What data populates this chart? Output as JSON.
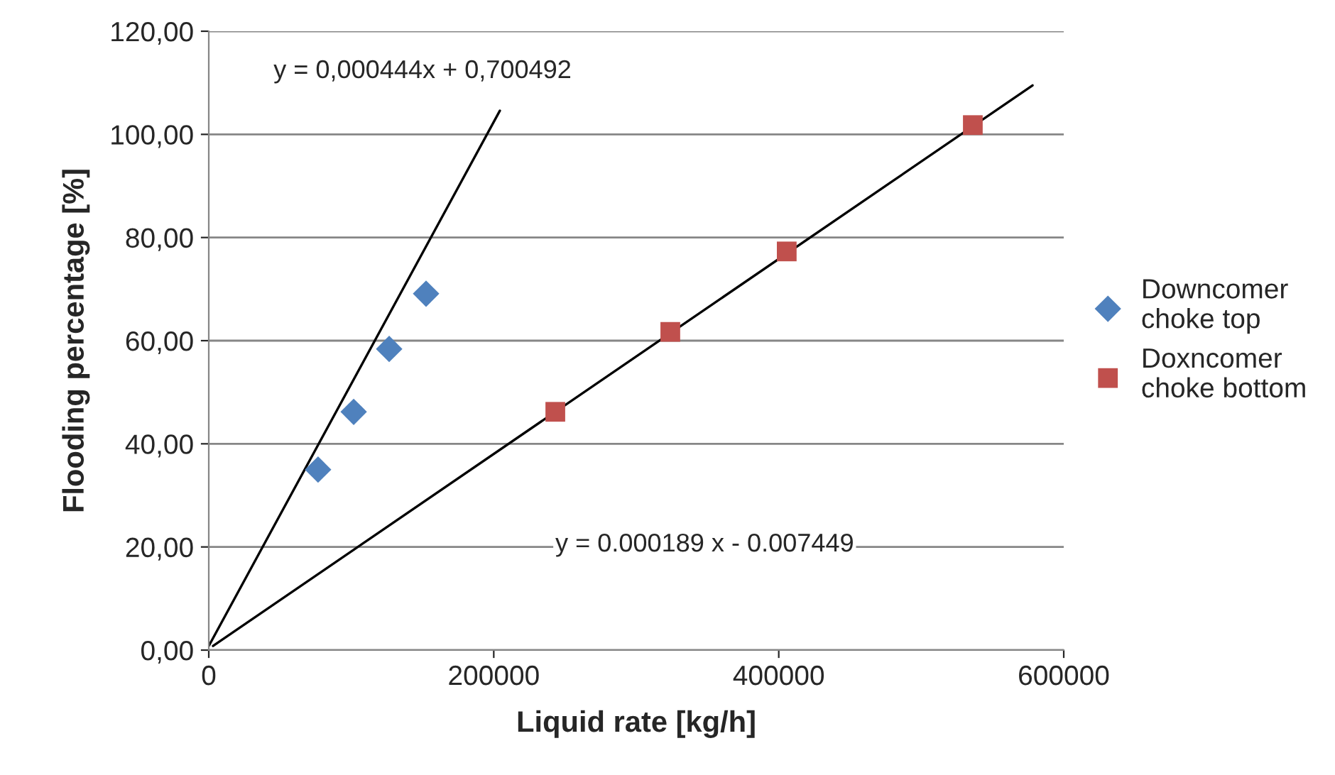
{
  "chart_data": {
    "type": "scatter",
    "xlabel": "Liquid rate [kg/h]",
    "ylabel": "Flooding percentage [%]",
    "series": [
      {
        "name": "Downcomer choke top",
        "marker": "diamond",
        "color": "#4f81bd",
        "x": [
          76700,
          101700,
          126600,
          152500
        ],
        "values": [
          35.0,
          46.2,
          58.4,
          69.1
        ]
      },
      {
        "name": "Doxncomer choke bottom",
        "marker": "square",
        "color": "#c0504d",
        "x": [
          243200,
          323900,
          405600,
          536200
        ],
        "values": [
          46.2,
          61.7,
          77.3,
          101.8
        ]
      },
      {
        "type": "line",
        "color": "#000000",
        "x": [
          0,
          204300
        ],
        "values": [
          0.8,
          104.6
        ]
      },
      {
        "type": "line",
        "color": "#000000",
        "x": [
          3000,
          578100
        ],
        "values": [
          0.8,
          109.5
        ]
      }
    ],
    "annotations": [
      "y = 0,000444x + 0,700492",
      "y = 0.000189 x - 0.007449"
    ],
    "xlim": [
      0,
      600000
    ],
    "xticks": [
      0,
      200000,
      400000,
      600000
    ],
    "ylim": [
      0,
      120
    ],
    "yticks": [
      {
        "value": 0,
        "label": "0,00"
      },
      {
        "value": 20,
        "label": "20,00"
      },
      {
        "value": 40,
        "label": "40,00"
      },
      {
        "value": 60,
        "label": "60,00"
      },
      {
        "value": 80,
        "label": "80,00"
      },
      {
        "value": 100,
        "label": "100,00"
      },
      {
        "value": 120,
        "label": "120,00"
      }
    ],
    "grid": "y",
    "legend": "right"
  }
}
